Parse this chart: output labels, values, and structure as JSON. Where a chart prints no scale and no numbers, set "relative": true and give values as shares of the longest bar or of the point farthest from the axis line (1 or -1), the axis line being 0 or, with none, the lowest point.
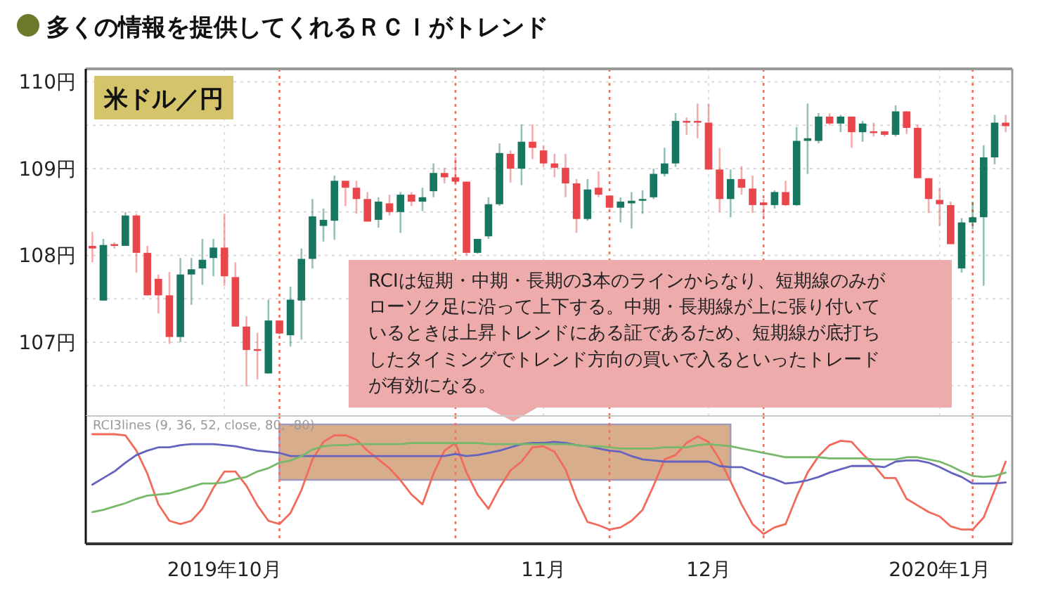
{
  "chart_data": [
    {
      "type": "candlestick",
      "title": "多くの情報を提供してくれるＲＣＩがトレンド",
      "subtitle": "米ドル／円",
      "ohlc": [
        [
          108.11,
          108.27,
          107.92,
          108.08
        ],
        [
          107.48,
          108.19,
          107.48,
          108.12
        ],
        [
          108.13,
          108.15,
          108.08,
          108.11
        ],
        [
          108.11,
          108.5,
          108.11,
          108.46
        ],
        [
          108.46,
          108.48,
          107.8,
          108.03
        ],
        [
          108.03,
          108.11,
          107.54,
          107.54
        ],
        [
          107.73,
          107.78,
          107.33,
          107.54
        ],
        [
          107.54,
          107.81,
          106.98,
          107.06
        ],
        [
          107.06,
          107.97,
          107.0,
          107.78
        ],
        [
          107.78,
          107.97,
          107.43,
          107.84
        ],
        [
          107.85,
          108.19,
          107.66,
          107.95
        ],
        [
          107.97,
          108.19,
          107.76,
          108.09
        ],
        [
          108.09,
          108.48,
          107.65,
          107.76
        ],
        [
          107.75,
          107.92,
          107.18,
          107.18
        ],
        [
          107.18,
          107.3,
          106.49,
          106.91
        ],
        [
          106.92,
          107.11,
          106.57,
          106.9
        ],
        [
          106.64,
          107.49,
          106.64,
          107.25
        ],
        [
          107.25,
          107.25,
          107.09,
          107.1
        ],
        [
          107.08,
          107.64,
          106.95,
          107.49
        ],
        [
          107.48,
          108.08,
          107.03,
          107.96
        ],
        [
          107.96,
          108.65,
          107.85,
          108.45
        ],
        [
          108.34,
          108.54,
          108.16,
          108.41
        ],
        [
          108.4,
          108.92,
          108.18,
          108.86
        ],
        [
          108.86,
          108.86,
          108.57,
          108.78
        ],
        [
          108.78,
          108.86,
          108.48,
          108.65
        ],
        [
          108.65,
          108.73,
          108.39,
          108.39
        ],
        [
          108.41,
          108.67,
          108.32,
          108.62
        ],
        [
          108.6,
          108.7,
          108.46,
          108.5
        ],
        [
          108.5,
          108.73,
          108.26,
          108.7
        ],
        [
          108.7,
          108.73,
          108.57,
          108.62
        ],
        [
          108.62,
          108.78,
          108.51,
          108.67
        ],
        [
          108.74,
          109.06,
          108.67,
          108.95
        ],
        [
          108.95,
          109.01,
          108.83,
          108.9
        ],
        [
          108.9,
          109.13,
          108.81,
          108.85
        ],
        [
          108.85,
          108.85,
          108.0,
          108.03
        ],
        [
          108.03,
          108.19,
          108.02,
          108.19
        ],
        [
          108.22,
          108.67,
          108.19,
          108.59
        ],
        [
          108.59,
          109.29,
          108.57,
          109.18
        ],
        [
          109.17,
          109.21,
          108.84,
          109.0
        ],
        [
          109.0,
          109.51,
          108.81,
          109.31
        ],
        [
          109.31,
          109.51,
          109.11,
          109.24
        ],
        [
          109.21,
          109.27,
          109.02,
          109.06
        ],
        [
          109.06,
          109.17,
          108.9,
          109.01
        ],
        [
          109.01,
          109.17,
          108.67,
          108.83
        ],
        [
          108.83,
          108.88,
          108.26,
          108.42
        ],
        [
          108.42,
          108.88,
          108.4,
          108.76
        ],
        [
          108.78,
          108.97,
          108.67,
          108.7
        ],
        [
          108.69,
          108.69,
          108.54,
          108.55
        ],
        [
          108.55,
          108.67,
          108.38,
          108.62
        ],
        [
          108.6,
          108.73,
          108.31,
          108.63
        ],
        [
          108.63,
          108.75,
          108.48,
          108.65
        ],
        [
          108.67,
          109.0,
          108.65,
          108.94
        ],
        [
          108.94,
          109.24,
          108.91,
          109.06
        ],
        [
          109.06,
          109.64,
          109.02,
          109.55
        ],
        [
          109.55,
          109.59,
          109.39,
          109.53
        ],
        [
          109.55,
          109.75,
          109.35,
          109.53
        ],
        [
          109.53,
          109.75,
          108.99,
          108.99
        ],
        [
          108.99,
          109.24,
          108.5,
          108.65
        ],
        [
          108.65,
          108.99,
          108.44,
          108.88
        ],
        [
          108.88,
          109.03,
          108.7,
          108.78
        ],
        [
          108.77,
          108.92,
          108.49,
          108.58
        ],
        [
          108.61,
          108.65,
          108.44,
          108.58
        ],
        [
          108.58,
          108.75,
          108.54,
          108.73
        ],
        [
          108.73,
          108.86,
          108.57,
          108.58
        ],
        [
          108.58,
          109.48,
          108.57,
          109.32
        ],
        [
          109.32,
          109.75,
          108.94,
          109.35
        ],
        [
          109.32,
          109.64,
          109.29,
          109.6
        ],
        [
          109.6,
          109.64,
          109.5,
          109.52
        ],
        [
          109.52,
          109.62,
          109.42,
          109.6
        ],
        [
          109.6,
          109.6,
          109.24,
          109.42
        ],
        [
          109.42,
          109.55,
          109.31,
          109.52
        ],
        [
          109.43,
          109.53,
          109.37,
          109.41
        ],
        [
          109.43,
          109.43,
          109.37,
          109.39
        ],
        [
          109.39,
          109.73,
          109.37,
          109.66
        ],
        [
          109.66,
          109.66,
          109.4,
          109.47
        ],
        [
          109.47,
          109.51,
          108.89,
          108.89
        ],
        [
          108.89,
          108.89,
          108.49,
          108.65
        ],
        [
          108.64,
          108.78,
          108.34,
          108.59
        ],
        [
          108.58,
          108.62,
          108.13,
          108.13
        ],
        [
          107.85,
          108.43,
          107.8,
          108.38
        ],
        [
          108.38,
          108.62,
          108.3,
          108.44
        ],
        [
          108.44,
          109.27,
          107.65,
          109.13
        ],
        [
          109.13,
          109.62,
          109.05,
          109.53
        ],
        [
          109.53,
          109.62,
          109.42,
          109.49
        ]
      ],
      "ylim": [
        106.15,
        110.15
      ],
      "yticks": [
        {
          "value": 106.5,
          "label": null
        },
        {
          "value": 107,
          "label": "107円"
        },
        {
          "value": 107.5,
          "label": null
        },
        {
          "value": 108,
          "label": "108円"
        },
        {
          "value": 108.5,
          "label": null
        },
        {
          "value": 109,
          "label": "109円"
        },
        {
          "value": 109.5,
          "label": null
        },
        {
          "value": 110,
          "label": "110円"
        }
      ],
      "grid": true,
      "tick_labels": "y",
      "annotations": [
        "RCIは短期・中期・長期の3本のラインからなり、短期線のみがローソク足に沿って上下する。中期・長期線が上に張り付いているときは上昇トレンドにある証であるため、短期線が底打ちしたタイミングでトレンド方向の買いで入るといったトレードが有効になる。"
      ]
    },
    {
      "type": "line",
      "title": "RCI3lines (9, 36, 52, close, 80, -80)",
      "relative": true,
      "categories": [
        null,
        null,
        null,
        null,
        null,
        null,
        null,
        null,
        null,
        null,
        null,
        null,
        "2019年10月",
        null,
        null,
        null,
        null,
        null,
        null,
        null,
        null,
        null,
        null,
        null,
        null,
        null,
        null,
        null,
        null,
        null,
        null,
        null,
        null,
        null,
        null,
        null,
        null,
        null,
        null,
        null,
        null,
        "11月",
        null,
        null,
        null,
        null,
        null,
        null,
        null,
        null,
        null,
        null,
        null,
        null,
        null,
        null,
        "12月",
        null,
        null,
        null,
        null,
        null,
        null,
        null,
        null,
        null,
        null,
        null,
        null,
        null,
        null,
        null,
        null,
        null,
        null,
        null,
        null,
        "2020年1月",
        null,
        null,
        null,
        null,
        null,
        null
      ],
      "series": [
        {
          "color": "#f26a5a",
          "values": [
            1,
            1,
            1,
            0.99,
            0.85,
            0.64,
            0.36,
            0.21,
            0.18,
            0.21,
            0.32,
            0.51,
            0.66,
            0.66,
            0.53,
            0.35,
            0.21,
            0.18,
            0.28,
            0.49,
            0.77,
            0.93,
            0.99,
            0.99,
            0.95,
            0.85,
            0.77,
            0.69,
            0.58,
            0.45,
            0.36,
            0.64,
            0.85,
            0.92,
            0.65,
            0.45,
            0.32,
            0.51,
            0.67,
            0.75,
            0.88,
            0.89,
            0.84,
            0.68,
            0.41,
            0.2,
            0.17,
            0.13,
            0.15,
            0.21,
            0.31,
            0.53,
            0.77,
            0.81,
            0.92,
            0.98,
            0.93,
            0.77,
            0.57,
            0.36,
            0.18,
            0.09,
            0.15,
            0.18,
            0.43,
            0.65,
            0.8,
            0.9,
            0.94,
            0.93,
            0.82,
            0.72,
            0.6,
            0.6,
            0.41,
            0.35,
            0.29,
            0.25,
            0.16,
            0.13,
            0.13,
            0.24,
            0.49,
            0.75
          ]
        },
        {
          "color": "#6464c0",
          "values": [
            0.54,
            0.6,
            0.66,
            0.74,
            0.81,
            0.85,
            0.88,
            0.88,
            0.9,
            0.91,
            0.91,
            0.91,
            0.9,
            0.89,
            0.87,
            0.85,
            0.84,
            0.83,
            0.8,
            0.8,
            0.8,
            0.8,
            0.8,
            0.8,
            0.8,
            0.8,
            0.8,
            0.8,
            0.8,
            0.8,
            0.8,
            0.8,
            0.8,
            0.82,
            0.8,
            0.81,
            0.83,
            0.85,
            0.88,
            0.91,
            0.92,
            0.92,
            0.93,
            0.92,
            0.9,
            0.89,
            0.87,
            0.85,
            0.84,
            0.8,
            0.77,
            0.76,
            0.75,
            0.75,
            0.75,
            0.75,
            0.75,
            0.71,
            0.7,
            0.7,
            0.66,
            0.62,
            0.59,
            0.55,
            0.56,
            0.58,
            0.61,
            0.65,
            0.68,
            0.71,
            0.71,
            0.71,
            0.7,
            0.75,
            0.76,
            0.76,
            0.74,
            0.7,
            0.65,
            0.61,
            0.55,
            0.55,
            0.55,
            0.56
          ]
        },
        {
          "color": "#78b86a",
          "values": [
            0.29,
            0.31,
            0.34,
            0.37,
            0.41,
            0.44,
            0.45,
            0.46,
            0.49,
            0.52,
            0.55,
            0.55,
            0.56,
            0.59,
            0.61,
            0.66,
            0.69,
            0.74,
            0.76,
            0.8,
            0.86,
            0.89,
            0.9,
            0.9,
            0.91,
            0.91,
            0.91,
            0.91,
            0.91,
            0.92,
            0.92,
            0.92,
            0.92,
            0.92,
            0.92,
            0.92,
            0.91,
            0.91,
            0.91,
            0.91,
            0.91,
            0.91,
            0.91,
            0.91,
            0.9,
            0.89,
            0.89,
            0.88,
            0.87,
            0.87,
            0.87,
            0.87,
            0.88,
            0.88,
            0.88,
            0.9,
            0.91,
            0.9,
            0.89,
            0.87,
            0.85,
            0.83,
            0.81,
            0.79,
            0.79,
            0.79,
            0.79,
            0.78,
            0.78,
            0.78,
            0.78,
            0.77,
            0.77,
            0.77,
            0.79,
            0.79,
            0.77,
            0.75,
            0.71,
            0.66,
            0.62,
            0.61,
            0.62,
            0.65
          ]
        }
      ]
    }
  ]
}
